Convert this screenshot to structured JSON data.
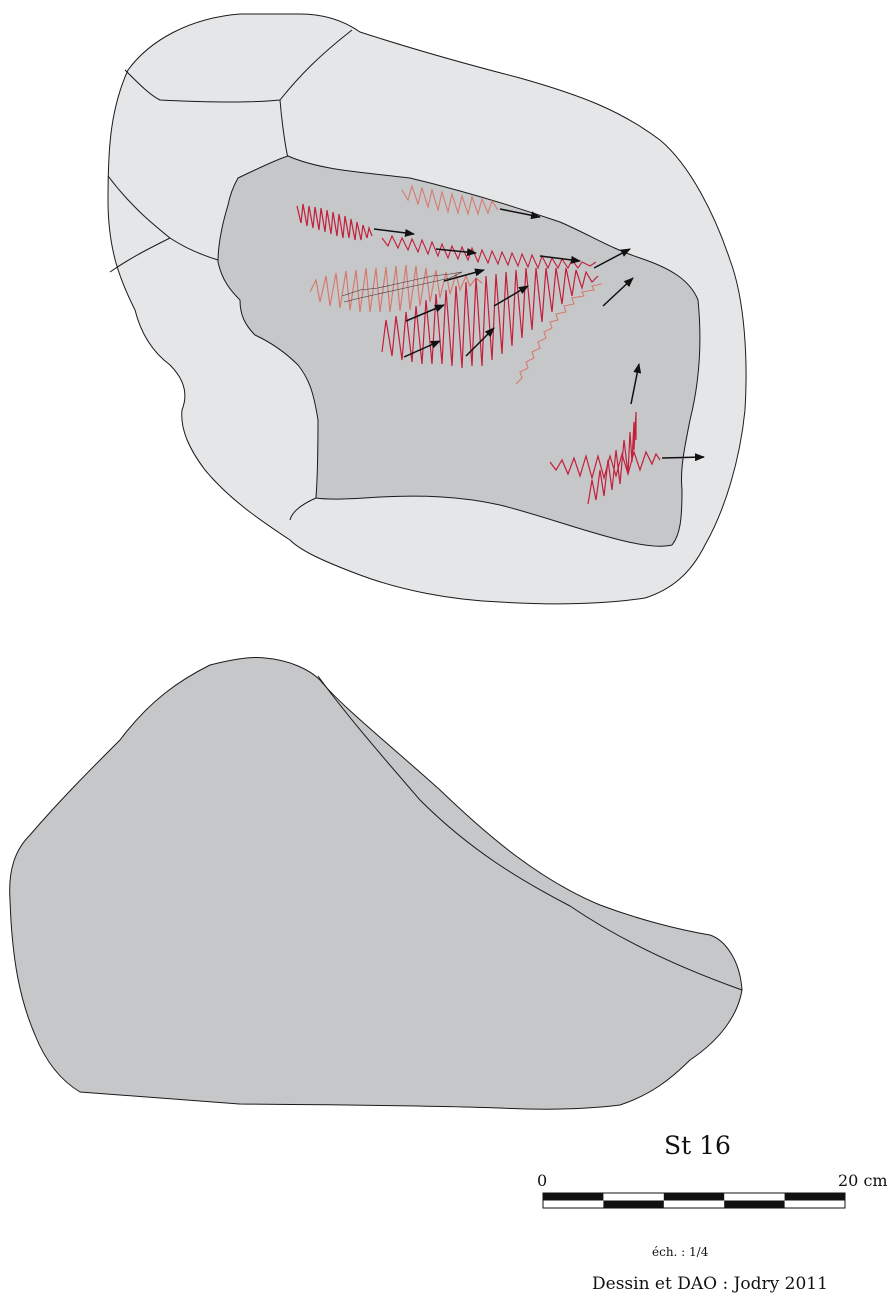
{
  "figure": {
    "label": "St 16",
    "credit": "Dessin et DAO : Jodry 2011"
  },
  "scale_bar": {
    "start_label": "0",
    "end_label": "20 cm",
    "ratio_label": "éch. : 1/4",
    "segments": 5
  },
  "colors": {
    "outer_surface": "#e5e6e8",
    "inner_surface": "#c6c7c9",
    "outline": "#1a1a1a",
    "trace_strong": "#c41e3a",
    "trace_light": "#d77a6e",
    "arrow": "#111111"
  }
}
